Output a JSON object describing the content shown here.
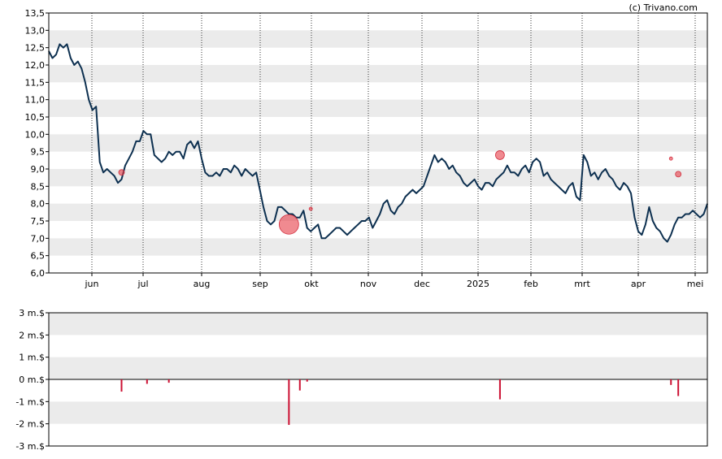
{
  "credit": "(c) Trivano.com",
  "chart_data": [
    {
      "type": "line",
      "title": "",
      "xlabel": "",
      "ylabel": "",
      "ylim": [
        6.0,
        13.5
      ],
      "y_ticks": [
        "13,5",
        "13,0",
        "12,5",
        "12,0",
        "11,5",
        "11,0",
        "10,5",
        "10,0",
        "9,5",
        "9,0",
        "8,5",
        "8,0",
        "7,5",
        "7,0",
        "6,5",
        "6,0"
      ],
      "x_ticks": [
        "jun",
        "jul",
        "aug",
        "sep",
        "okt",
        "nov",
        "dec",
        "2025",
        "feb",
        "mrt",
        "apr",
        "mei"
      ],
      "grid": "alternating horizontal bands, dotted vertical lines at months",
      "line_color": "#0d3050",
      "series": [
        {
          "values": [
            12.4,
            12.2,
            12.3,
            12.6,
            12.5,
            12.6,
            12.2,
            12.0,
            12.1,
            11.9,
            11.5,
            11.0,
            10.7,
            10.8,
            9.2,
            8.9,
            9.0,
            8.9,
            8.8,
            8.6,
            8.7,
            9.1,
            9.3,
            9.5,
            9.8,
            9.8,
            10.1,
            10.0,
            10.0,
            9.4,
            9.3,
            9.2,
            9.3,
            9.5,
            9.4,
            9.5,
            9.5,
            9.3,
            9.7,
            9.8,
            9.6,
            9.8,
            9.3,
            8.9,
            8.8,
            8.8,
            8.9,
            8.8,
            9.0,
            9.0,
            8.9,
            9.1,
            9.0,
            8.8,
            9.0,
            8.9,
            8.8,
            8.9,
            8.4,
            7.9,
            7.5,
            7.4,
            7.5,
            7.9,
            7.9,
            7.8,
            7.7,
            7.7,
            7.6,
            7.6,
            7.8,
            7.3,
            7.2,
            7.3,
            7.4,
            7.0,
            7.0,
            7.1,
            7.2,
            7.3,
            7.3,
            7.2,
            7.1,
            7.2,
            7.3,
            7.4,
            7.5,
            7.5,
            7.6,
            7.3,
            7.5,
            7.7,
            8.0,
            8.1,
            7.8,
            7.7,
            7.9,
            8.0,
            8.2,
            8.3,
            8.4,
            8.3,
            8.4,
            8.5,
            8.8,
            9.1,
            9.4,
            9.2,
            9.3,
            9.2,
            9.0,
            9.1,
            8.9,
            8.8,
            8.6,
            8.5,
            8.6,
            8.7,
            8.5,
            8.4,
            8.6,
            8.6,
            8.5,
            8.7,
            8.8,
            8.9,
            9.1,
            8.9,
            8.9,
            8.8,
            9.0,
            9.1,
            8.9,
            9.2,
            9.3,
            9.2,
            8.8,
            8.9,
            8.7,
            8.6,
            8.5,
            8.4,
            8.3,
            8.5,
            8.6,
            8.2,
            8.1,
            9.4,
            9.2,
            8.8,
            8.9,
            8.7,
            8.9,
            9.0,
            8.8,
            8.7,
            8.5,
            8.4,
            8.6,
            8.5,
            8.3,
            7.6,
            7.2,
            7.1,
            7.4,
            7.9,
            7.5,
            7.3,
            7.2,
            7.0,
            6.9,
            7.1,
            7.4,
            7.6,
            7.6,
            7.7,
            7.7,
            7.8,
            7.7,
            7.6,
            7.7,
            8.0
          ]
        }
      ],
      "markers": [
        {
          "series_index": 20,
          "value": 8.9,
          "size": "small"
        },
        {
          "series_index": 66,
          "value": 7.4,
          "size": "large"
        },
        {
          "series_index": 72,
          "value": 7.85,
          "size": "tiny"
        },
        {
          "series_index": 124,
          "value": 9.4,
          "size": "medium"
        },
        {
          "series_index": 171,
          "value": 9.3,
          "size": "tiny"
        },
        {
          "series_index": 173,
          "value": 8.85,
          "size": "small"
        }
      ]
    },
    {
      "type": "bar",
      "title": "",
      "ylabel": "",
      "ylim": [
        -3,
        3
      ],
      "y_ticks": [
        "3 m.$",
        "2 m.$",
        "1 m.$",
        "0 m.$",
        "-1 m.$",
        "-2 m.$",
        "-3 m.$"
      ],
      "bar_color": "#cc1133",
      "bars": [
        {
          "series_index": 20,
          "value": -0.55
        },
        {
          "series_index": 27,
          "value": -0.2
        },
        {
          "series_index": 33,
          "value": -0.15
        },
        {
          "series_index": 66,
          "value": -2.05
        },
        {
          "series_index": 69,
          "value": -0.5
        },
        {
          "series_index": 71,
          "value": -0.1
        },
        {
          "series_index": 124,
          "value": -0.9
        },
        {
          "series_index": 171,
          "value": -0.25
        },
        {
          "series_index": 173,
          "value": -0.75
        },
        {
          "series_index": 186,
          "value": -0.05
        }
      ]
    }
  ]
}
